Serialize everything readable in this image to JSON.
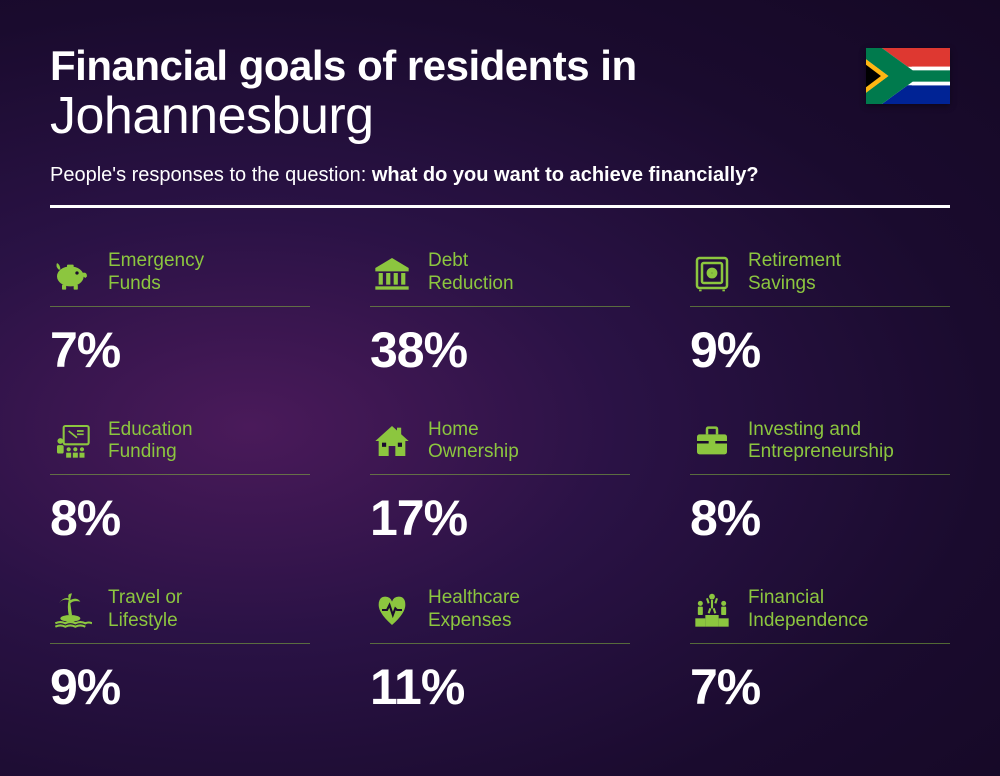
{
  "header": {
    "title_prefix": "Financial goals of residents in",
    "city": "Johannesburg",
    "subtitle_prefix": "People's responses to the question: ",
    "subtitle_bold": "what do you want to achieve financially?"
  },
  "colors": {
    "accent": "#8cc63f",
    "text": "#ffffff",
    "divider": "#ffffff",
    "item_divider": "rgba(140,200,60,0.5)",
    "background_gradient": [
      "#4a1a5a",
      "#2a1245",
      "#1a0b2e",
      "#150825"
    ]
  },
  "typography": {
    "title_bold_size": 42,
    "title_city_size": 52,
    "subtitle_size": 20,
    "label_size": 19,
    "pct_size": 50,
    "font_family": "Segoe UI, Arial, sans-serif"
  },
  "layout": {
    "grid_cols": 3,
    "grid_rows": 3,
    "gap_row": 40,
    "gap_col": 60
  },
  "flag": {
    "country": "South Africa",
    "colors": {
      "red": "#de3831",
      "blue": "#002395",
      "green": "#007a4d",
      "yellow": "#ffb612",
      "black": "#000000",
      "white": "#ffffff"
    }
  },
  "items": [
    {
      "icon": "piggy-bank",
      "label": "Emergency\nFunds",
      "value": "7%"
    },
    {
      "icon": "bank",
      "label": "Debt\nReduction",
      "value": "38%"
    },
    {
      "icon": "safe",
      "label": "Retirement\nSavings",
      "value": "9%"
    },
    {
      "icon": "education",
      "label": "Education\nFunding",
      "value": "8%"
    },
    {
      "icon": "house",
      "label": "Home\nOwnership",
      "value": "17%"
    },
    {
      "icon": "briefcase",
      "label": "Investing and\nEntrepreneurship",
      "value": "8%"
    },
    {
      "icon": "island",
      "label": "Travel or\nLifestyle",
      "value": "9%"
    },
    {
      "icon": "heart-pulse",
      "label": "Healthcare\nExpenses",
      "value": "11%"
    },
    {
      "icon": "podium",
      "label": "Financial\nIndependence",
      "value": "7%"
    }
  ]
}
